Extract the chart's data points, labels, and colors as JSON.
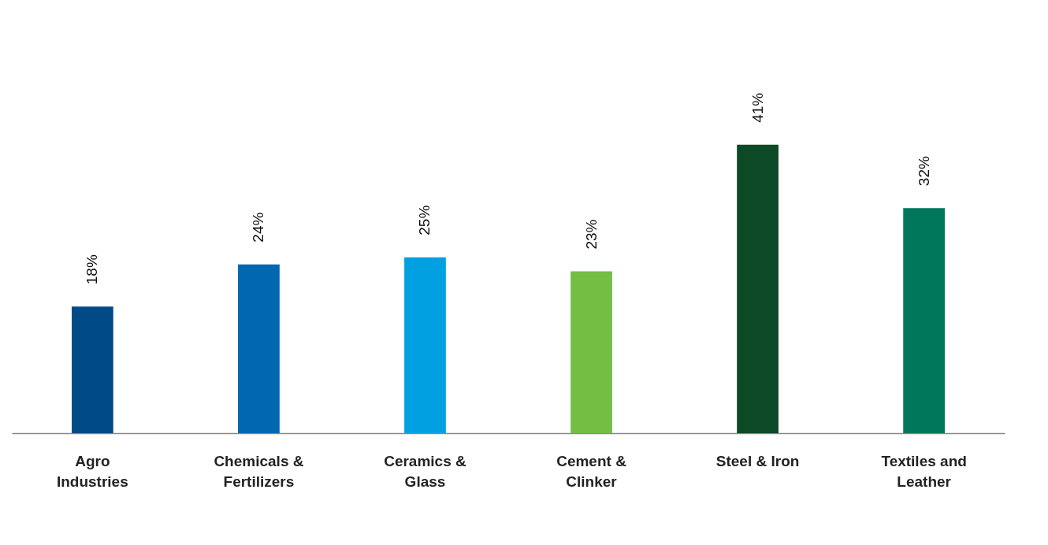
{
  "chart_data": {
    "type": "bar",
    "categories": [
      "Agro Industries",
      "Chemicals & Fertilizers",
      "Ceramics & Glass",
      "Cement & Clinker",
      "Steel & Iron",
      "Textiles and Leather"
    ],
    "values": [
      18,
      24,
      25,
      23,
      41,
      32
    ],
    "value_labels": [
      "18%",
      "24%",
      "25%",
      "23%",
      "41%",
      "32%"
    ],
    "colors": [
      "#004b87",
      "#0067b1",
      "#00a0e1",
      "#72bf44",
      "#0b4a24",
      "#00775a"
    ],
    "grid": false,
    "legend": false
  }
}
